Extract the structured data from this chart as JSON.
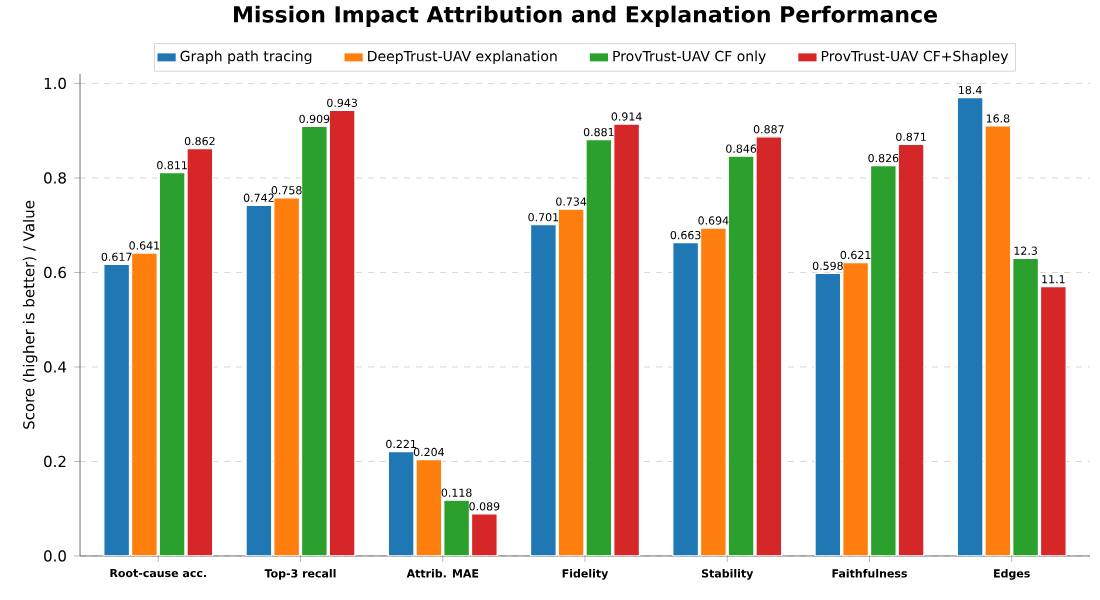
{
  "chart_data": {
    "type": "bar",
    "title": "Mission Impact Attribution and Explanation Performance",
    "ylabel": "Score (higher is better) / Value",
    "categories": [
      "Root-cause acc.",
      "Top-3 recall",
      "Attrib. MAE",
      "Fidelity",
      "Stability",
      "Faithfulness",
      "Edges"
    ],
    "series": [
      {
        "name": "Graph path tracing",
        "color": "#1f77b4",
        "values": [
          0.617,
          0.742,
          0.221,
          0.701,
          0.663,
          0.598,
          0.97
        ],
        "value_labels": [
          "0.617",
          "0.742",
          "0.221",
          "0.701",
          "0.663",
          "0.598",
          null
        ]
      },
      {
        "name": "DeepTrust-UAV explanation",
        "color": "#ff7f0e",
        "values": [
          0.641,
          0.758,
          0.204,
          0.734,
          0.694,
          0.621,
          0.91
        ],
        "value_labels": [
          "0.641",
          "0.758",
          "0.204",
          "0.734",
          "0.694",
          "0.621",
          null
        ]
      },
      {
        "name": "ProvTrust-UAV CF only",
        "color": "#2ca02c",
        "values": [
          0.811,
          0.909,
          0.118,
          0.881,
          0.846,
          0.826,
          0.63
        ],
        "value_labels": [
          "0.811",
          "0.909",
          "0.118",
          "0.881",
          "0.846",
          "0.826",
          null
        ]
      },
      {
        "name": "ProvTrust-UAV CF+Shapley",
        "color": "#d62728",
        "values": [
          0.862,
          0.943,
          0.089,
          0.914,
          0.887,
          0.871,
          0.57
        ],
        "value_labels": [
          "0.862",
          "0.943",
          "0.089",
          "0.914",
          "0.887",
          "0.871",
          null
        ]
      }
    ],
    "annotations": [
      "18.4",
      {
        "text": "16.8",
        "x": "Edges",
        "y": 0.91
      },
      {
        "text": "12.3",
        "x": "Edges",
        "y": 0.63
      },
      {
        "text": "11.1",
        "x": "Edges",
        "y": 0.57
      }
    ],
    "ylim": [
      0,
      1.02
    ],
    "yticks": [
      {
        "value": 0,
        "label": "0.0"
      },
      {
        "value": 0.2,
        "label": "0.2"
      },
      {
        "value": 0.4,
        "label": "0.4"
      },
      {
        "value": 0.6,
        "label": "0.6"
      },
      {
        "value": 0.8,
        "label": "0.8"
      },
      {
        "value": 1.0,
        "label": "1.0"
      }
    ],
    "grid": "y",
    "legend": "top"
  }
}
